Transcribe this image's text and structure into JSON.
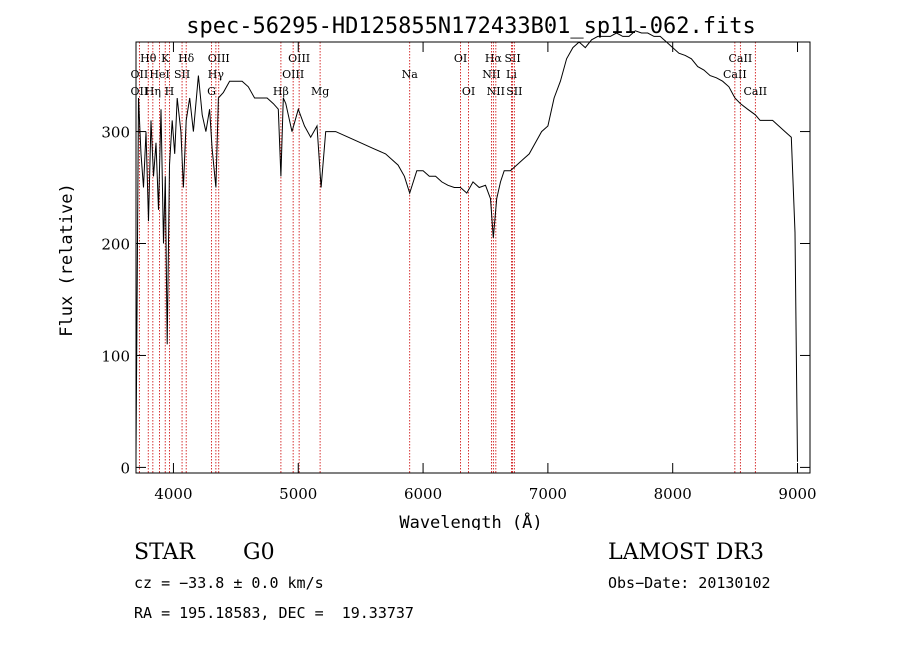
{
  "chart_data": {
    "type": "line",
    "title": "spec-56295-HD125855N172433B01_sp11-062.fits",
    "xlabel": "Wavelength (Å)",
    "ylabel": "Flux (relative)",
    "xlim": [
      3700,
      9100
    ],
    "ylim": [
      -5,
      380
    ],
    "x_ticks": [
      4000,
      5000,
      6000,
      7000,
      8000,
      9000
    ],
    "y_ticks": [
      0,
      100,
      200,
      300
    ],
    "grid": false,
    "series": [
      {
        "x": [
          3700,
          3720,
          3740,
          3760,
          3780,
          3800,
          3820,
          3840,
          3860,
          3880,
          3900,
          3920,
          3935,
          3950,
          3968,
          3990,
          4010,
          4030,
          4060,
          4080,
          4102,
          4130,
          4160,
          4200,
          4230,
          4260,
          4290,
          4310,
          4340,
          4360,
          4400,
          4450,
          4500,
          4550,
          4600,
          4650,
          4700,
          4750,
          4800,
          4840,
          4861,
          4880,
          4900,
          4950,
          5000,
          5050,
          5100,
          5150,
          5183,
          5220,
          5300,
          5400,
          5500,
          5600,
          5700,
          5800,
          5850,
          5893,
          5950,
          6000,
          6050,
          6100,
          6150,
          6200,
          6250,
          6300,
          6350,
          6400,
          6450,
          6500,
          6540,
          6563,
          6590,
          6620,
          6650,
          6700,
          6750,
          6800,
          6850,
          6900,
          6950,
          7000,
          7050,
          7100,
          7150,
          7200,
          7250,
          7300,
          7350,
          7400,
          7450,
          7500,
          7550,
          7600,
          7650,
          7700,
          7750,
          7800,
          7850,
          7900,
          7950,
          8000,
          8050,
          8100,
          8150,
          8200,
          8250,
          8300,
          8350,
          8400,
          8450,
          8498,
          8542,
          8600,
          8662,
          8700,
          8750,
          8800,
          8850,
          8900,
          8950,
          8980,
          9000
        ],
        "y": [
          10,
          330,
          280,
          250,
          300,
          220,
          310,
          260,
          290,
          230,
          320,
          200,
          260,
          110,
          270,
          310,
          280,
          330,
          300,
          250,
          310,
          330,
          300,
          350,
          315,
          300,
          320,
          285,
          250,
          330,
          335,
          345,
          345,
          345,
          340,
          330,
          330,
          330,
          325,
          320,
          260,
          330,
          325,
          300,
          320,
          305,
          295,
          305,
          250,
          300,
          300,
          295,
          290,
          285,
          280,
          270,
          260,
          245,
          265,
          265,
          260,
          260,
          255,
          252,
          250,
          250,
          245,
          255,
          250,
          252,
          240,
          205,
          240,
          255,
          265,
          265,
          270,
          275,
          280,
          290,
          300,
          305,
          330,
          345,
          365,
          375,
          380,
          375,
          382,
          385,
          385,
          385,
          388,
          385,
          385,
          390,
          388,
          388,
          385,
          385,
          380,
          375,
          370,
          368,
          365,
          358,
          355,
          350,
          348,
          345,
          340,
          330,
          325,
          320,
          315,
          310,
          310,
          310,
          305,
          300,
          295,
          210,
          5
        ]
      }
    ],
    "lines": [
      {
        "name": "OII",
        "x": 3727,
        "row": 2
      },
      {
        "name": "OII",
        "x": 3727,
        "row": 3
      },
      {
        "name": "Hθ",
        "x": 3798,
        "row": 1
      },
      {
        "name": "HeI",
        "x": 3889,
        "row": 2
      },
      {
        "name": "Hη",
        "x": 3835,
        "row": 3
      },
      {
        "name": "K",
        "x": 3934,
        "row": 1
      },
      {
        "name": "SII",
        "x": 4069,
        "row": 2
      },
      {
        "name": "H",
        "x": 3968,
        "row": 3
      },
      {
        "name": "Hδ",
        "x": 4102,
        "row": 1
      },
      {
        "name": "OIII",
        "x": 4363,
        "row": 1
      },
      {
        "name": "Hγ",
        "x": 4340,
        "row": 2
      },
      {
        "name": "G",
        "x": 4305,
        "row": 3
      },
      {
        "name": "OIII",
        "x": 5007,
        "row": 1
      },
      {
        "name": "OIII",
        "x": 4959,
        "row": 2
      },
      {
        "name": "Hβ",
        "x": 4861,
        "row": 3
      },
      {
        "name": "Mg",
        "x": 5175,
        "row": 3
      },
      {
        "name": "Na",
        "x": 5893,
        "row": 2
      },
      {
        "name": "OI",
        "x": 6300,
        "row": 1
      },
      {
        "name": "OI",
        "x": 6364,
        "row": 3
      },
      {
        "name": "Hα",
        "x": 6563,
        "row": 1
      },
      {
        "name": "SII",
        "x": 6717,
        "row": 1
      },
      {
        "name": "NII",
        "x": 6548,
        "row": 2
      },
      {
        "name": "Li",
        "x": 6708,
        "row": 2
      },
      {
        "name": "NII",
        "x": 6583,
        "row": 3
      },
      {
        "name": "SII",
        "x": 6731,
        "row": 3
      },
      {
        "name": "CaII",
        "x": 8542,
        "row": 1
      },
      {
        "name": "CaII",
        "x": 8498,
        "row": 2
      },
      {
        "name": "CaII",
        "x": 8662,
        "row": 3
      }
    ],
    "line_color": "#cc0000"
  },
  "info": {
    "class_label": "STAR",
    "subclass": "G0",
    "survey": "LAMOST DR3",
    "cz": "cz = −33.8 ± 0.0 km/s",
    "obs_date": "Obs−Date: 20130102",
    "coords": "RA = 195.18583, DEC =  19.33737"
  }
}
